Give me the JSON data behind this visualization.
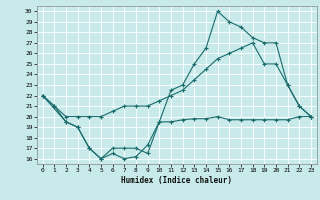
{
  "title": "",
  "xlabel": "Humidex (Indice chaleur)",
  "bg_color": "#c8eaea",
  "grid_color": "#ffffff",
  "line_color": "#1a6b6b",
  "xlim": [
    -0.5,
    23.5
  ],
  "ylim": [
    15.5,
    30.5
  ],
  "yticks": [
    16,
    17,
    18,
    19,
    20,
    21,
    22,
    23,
    24,
    25,
    26,
    27,
    28,
    29,
    30
  ],
  "xticks": [
    0,
    1,
    2,
    3,
    4,
    5,
    6,
    7,
    8,
    9,
    10,
    11,
    12,
    13,
    14,
    15,
    16,
    17,
    18,
    19,
    20,
    21,
    22,
    23
  ],
  "line1_x": [
    0,
    1,
    2,
    3,
    4,
    5,
    6,
    7,
    8,
    9,
    10,
    11,
    12,
    13,
    14,
    15,
    16,
    17,
    18,
    19,
    20,
    21,
    22,
    23
  ],
  "line1_y": [
    22,
    21,
    19.5,
    19,
    17,
    16,
    16.5,
    16,
    16.2,
    17.3,
    19.5,
    19.5,
    19.7,
    19.8,
    19.8,
    20,
    19.7,
    19.7,
    19.7,
    19.7,
    19.7,
    19.7,
    20,
    20
  ],
  "line2_x": [
    0,
    1,
    2,
    3,
    4,
    5,
    6,
    7,
    8,
    9,
    10,
    11,
    12,
    13,
    14,
    15,
    16,
    17,
    18,
    19,
    20,
    21,
    22,
    23
  ],
  "line2_y": [
    22,
    21,
    20,
    20,
    20,
    20,
    20.5,
    21,
    21,
    21,
    21.5,
    22,
    22.5,
    23.5,
    24.5,
    25.5,
    26,
    26.5,
    27,
    25,
    25,
    23,
    21,
    20
  ],
  "line3_x": [
    0,
    2,
    3,
    4,
    5,
    6,
    7,
    8,
    9,
    10,
    11,
    12,
    13,
    14,
    15,
    16,
    17,
    18,
    19,
    20,
    21,
    22,
    23
  ],
  "line3_y": [
    22,
    19.5,
    19,
    17,
    16,
    17,
    17,
    17,
    16.5,
    19.5,
    22.5,
    23,
    25,
    26.5,
    30,
    29,
    28.5,
    27.5,
    27,
    27,
    23,
    21,
    20
  ]
}
